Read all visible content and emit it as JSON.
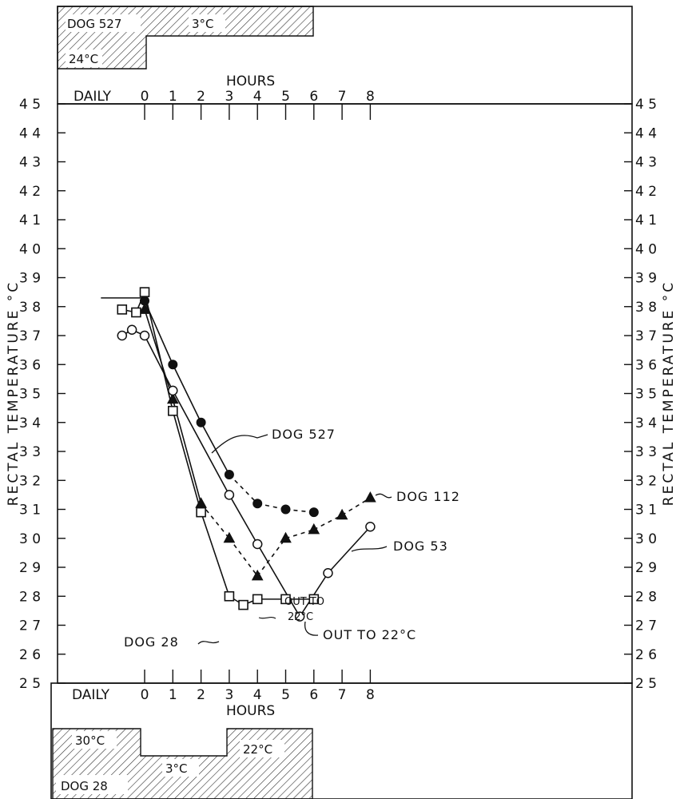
{
  "chart_data": {
    "type": "line",
    "ylabel_left": "RECTAL TEMPERATURE °C",
    "ylabel_right": "RECTAL TEMPERATURE °C",
    "xlabel_top": "HOURS",
    "xlabel_bottom": "HOURS",
    "x_ticks": [
      "DAILY",
      "0",
      "1",
      "2",
      "3",
      "4",
      "5",
      "6",
      "7",
      "8"
    ],
    "y_ticks": [
      "45",
      "44",
      "43",
      "42",
      "41",
      "40",
      "39",
      "38",
      "37",
      "36",
      "35",
      "34",
      "33",
      "32",
      "31",
      "30",
      "29",
      "28",
      "27",
      "26",
      "25"
    ],
    "ylim": [
      25,
      45
    ],
    "xlim": [
      -1,
      8
    ],
    "series": [
      {
        "name": "DOG 527",
        "marker": "filled-circle",
        "baseline": 38.3,
        "points": [
          [
            0,
            38.2
          ],
          [
            1,
            36.0
          ],
          [
            2,
            34.0
          ],
          [
            3,
            32.2
          ],
          [
            4,
            31.2
          ],
          [
            5,
            31.0
          ],
          [
            6,
            30.9
          ]
        ],
        "solid_until": 3
      },
      {
        "name": "DOG 112",
        "marker": "filled-triangle",
        "points": [
          [
            0,
            37.9
          ],
          [
            1,
            34.8
          ],
          [
            2,
            31.2
          ],
          [
            3,
            30.0
          ],
          [
            4,
            28.7
          ],
          [
            5,
            30.0
          ],
          [
            6,
            30.3
          ],
          [
            7,
            30.8
          ],
          [
            8,
            31.4
          ]
        ],
        "solid_until": 2
      },
      {
        "name": "DOG 53",
        "marker": "open-circle",
        "points": [
          [
            -0.8,
            37.0
          ],
          [
            -0.45,
            37.2
          ],
          [
            0,
            37.0
          ],
          [
            1,
            35.1
          ],
          [
            3,
            31.5
          ],
          [
            4,
            29.8
          ],
          [
            5.5,
            27.3
          ],
          [
            6.5,
            28.8
          ],
          [
            8,
            30.4
          ]
        ]
      },
      {
        "name": "DOG 28",
        "marker": "open-square",
        "points": [
          [
            -0.8,
            37.9
          ],
          [
            -0.3,
            37.8
          ],
          [
            0,
            38.5
          ],
          [
            1,
            34.4
          ],
          [
            2,
            30.9
          ],
          [
            3,
            28.0
          ],
          [
            3.5,
            27.7
          ],
          [
            4,
            27.9
          ],
          [
            5,
            27.9
          ],
          [
            6,
            27.9
          ]
        ]
      }
    ],
    "annotations": {
      "dog527": "DOG 527",
      "dog112": "DOG 112",
      "dog53": "DOG 53",
      "dog28": "DOG 28",
      "out_to_small_1": "OUT TO",
      "out_to_small_2": "22°C",
      "out_to_large": "OUT TO 22°C"
    },
    "top_box": {
      "dog": "DOG 527",
      "temp_cold": "3°C",
      "temp_warm": "24°C"
    },
    "bottom_box": {
      "temp_warm1": "30°C",
      "temp_cold": "3°C",
      "temp_warm2": "22°C",
      "dog": "DOG 28"
    }
  }
}
